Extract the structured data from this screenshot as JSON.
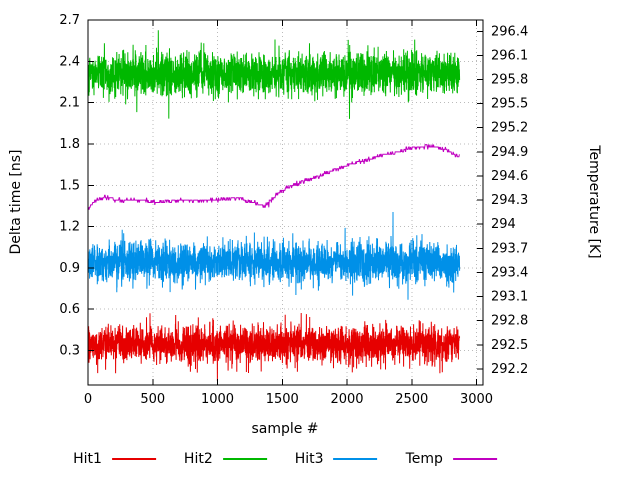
{
  "chart_data": {
    "type": "line",
    "title": "",
    "xlabel": "sample #",
    "ylabel_left": "Delta time [ns]",
    "ylabel_right": "Temperature [K]",
    "xlim": [
      0,
      3050
    ],
    "x_ticks": [
      0,
      500,
      1000,
      1500,
      2000,
      2500,
      3000
    ],
    "ylim_left": [
      0.05,
      2.7
    ],
    "y_ticks_left": [
      0.3,
      0.6,
      0.9,
      1.2,
      1.5,
      1.8,
      2.1,
      2.4,
      2.7
    ],
    "ylim_right": [
      292.0,
      296.54
    ],
    "y_ticks_right": [
      292.2,
      292.5,
      292.8,
      293.1,
      293.4,
      293.7,
      294,
      294.3,
      294.6,
      294.9,
      295.2,
      295.5,
      295.8,
      296.1,
      296.4
    ],
    "grid": true,
    "grid_color": "#bbbbbb",
    "axis_color": "#000000",
    "text_color": "#000000",
    "legend_position": "bottom-center",
    "sample_start": 0,
    "sample_end": 2870,
    "series": [
      {
        "name": "Hit1",
        "color": "#e60000",
        "axis": "left",
        "kind": "noisy",
        "mean": 0.35,
        "sigma": 0.065,
        "spike_prob": 0.004,
        "spike_scale": 0.12,
        "points": 2870,
        "seed": 101
      },
      {
        "name": "Hit2",
        "color": "#00b800",
        "axis": "left",
        "kind": "noisy",
        "mean": 2.31,
        "sigma": 0.075,
        "spike_prob": 0.004,
        "spike_scale": 0.12,
        "points": 2870,
        "seed": 202
      },
      {
        "name": "Hit3",
        "color": "#0090e8",
        "axis": "left",
        "kind": "noisy",
        "mean": 0.94,
        "sigma": 0.07,
        "spike_prob": 0.003,
        "spike_scale": 0.15,
        "points": 2870,
        "seed": 303
      },
      {
        "name": "Temp",
        "color": "#c000c0",
        "axis": "right",
        "kind": "step",
        "anchors": [
          [
            0,
            294.18
          ],
          [
            40,
            294.28
          ],
          [
            120,
            294.33
          ],
          [
            250,
            294.3
          ],
          [
            400,
            294.3
          ],
          [
            550,
            294.27
          ],
          [
            700,
            294.3
          ],
          [
            900,
            294.29
          ],
          [
            1050,
            294.31
          ],
          [
            1150,
            294.33
          ],
          [
            1250,
            294.28
          ],
          [
            1370,
            294.22
          ],
          [
            1410,
            294.3
          ],
          [
            1480,
            294.4
          ],
          [
            1560,
            294.47
          ],
          [
            1650,
            294.52
          ],
          [
            1750,
            294.58
          ],
          [
            1850,
            294.64
          ],
          [
            1950,
            294.7
          ],
          [
            2050,
            294.76
          ],
          [
            2150,
            294.8
          ],
          [
            2250,
            294.85
          ],
          [
            2350,
            294.89
          ],
          [
            2450,
            294.93
          ],
          [
            2560,
            294.96
          ],
          [
            2680,
            294.97
          ],
          [
            2760,
            294.93
          ],
          [
            2820,
            294.88
          ],
          [
            2870,
            294.84
          ]
        ],
        "step_quantum": 0.03,
        "jitter": 0.013,
        "seed": 404
      }
    ]
  }
}
